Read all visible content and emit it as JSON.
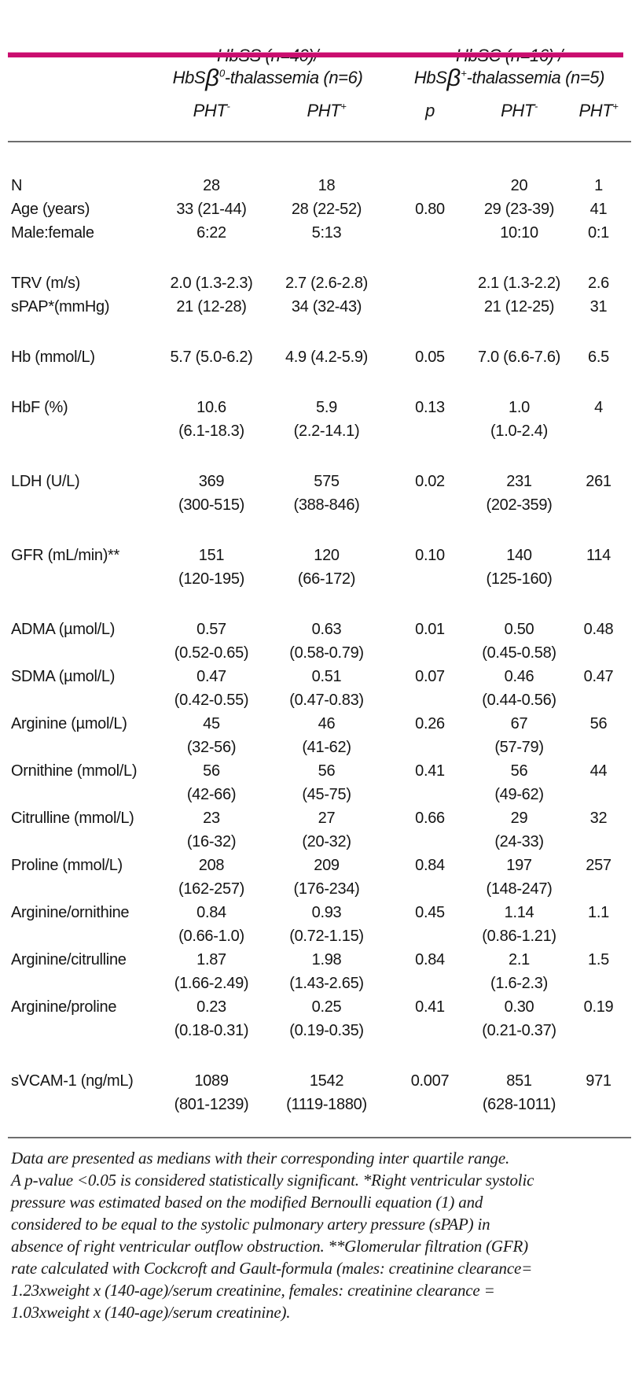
{
  "colors": {
    "accent_bar": "#ca0d6f",
    "rule": "#6e6e6e",
    "text": "#141414"
  },
  "table": {
    "group_headers": [
      {
        "line1": "HbSS (n=40)/",
        "line2_base": "HbS",
        "line2_beta": "β",
        "line2_sup": "0",
        "line2_rest": "-thalassemia (n=6)"
      },
      {
        "line1": "HbSC (n=16) /",
        "line2_base": "HbS",
        "line2_beta": "β",
        "line2_sup": "+",
        "line2_rest": "-thalassemia (n=5)"
      }
    ],
    "subheaders": [
      {
        "base": "PHT",
        "sup": "-"
      },
      {
        "base": "PHT",
        "sup": "+"
      },
      {
        "base": "p",
        "sup": ""
      },
      {
        "base": "PHT",
        "sup": "-"
      },
      {
        "base": "PHT",
        "sup": "+"
      }
    ],
    "rows": [
      {
        "label": "N",
        "v1": "28",
        "r1": "",
        "v2": "18",
        "r2": "",
        "p": "",
        "v3": "20",
        "r3": "",
        "v4": "1",
        "gap_before": false
      },
      {
        "label": "Age (years)",
        "v1": "33 (21-44)",
        "r1": "",
        "v2": "28 (22-52)",
        "r2": "",
        "p": "0.80",
        "v3": "29 (23-39)",
        "r3": "",
        "v4": "41",
        "gap_before": false
      },
      {
        "label": "Male:female",
        "v1": "6:22",
        "r1": "",
        "v2": "5:13",
        "r2": "",
        "p": "",
        "v3": "10:10",
        "r3": "",
        "v4": "0:1",
        "gap_before": false
      },
      {
        "label": "TRV (m/s)",
        "v1": "2.0 (1.3-2.3)",
        "r1": "",
        "v2": "2.7 (2.6-2.8)",
        "r2": "",
        "p": "",
        "v3": "2.1 (1.3-2.2)",
        "r3": "",
        "v4": "2.6",
        "gap_before": true
      },
      {
        "label": "sPAP*(mmHg)",
        "v1": "21 (12-28)",
        "r1": "",
        "v2": "34 (32-43)",
        "r2": "",
        "p": "",
        "v3": "21 (12-25)",
        "r3": "",
        "v4": "31",
        "gap_before": false
      },
      {
        "label": "Hb (mmol/L)",
        "v1": "5.7 (5.0-6.2)",
        "r1": "",
        "v2": "4.9 (4.2-5.9)",
        "r2": "",
        "p": "0.05",
        "v3": "7.0 (6.6-7.6)",
        "r3": "",
        "v4": "6.5",
        "gap_before": true
      },
      {
        "label": "HbF (%)",
        "v1": "10.6",
        "r1": "(6.1-18.3)",
        "v2": "5.9",
        "r2": "(2.2-14.1)",
        "p": "0.13",
        "v3": "1.0",
        "r3": "(1.0-2.4)",
        "v4": "4",
        "gap_before": true
      },
      {
        "label": "LDH (U/L)",
        "v1": "369",
        "r1": "(300-515)",
        "v2": "575",
        "r2": "(388-846)",
        "p": "0.02",
        "v3": "231",
        "r3": "(202-359)",
        "v4": "261",
        "gap_before": true
      },
      {
        "label": "GFR (mL/min)**",
        "v1": "151",
        "r1": "(120-195)",
        "v2": "120",
        "r2": "(66-172)",
        "p": "0.10",
        "v3": "140",
        "r3": "(125-160)",
        "v4": "114",
        "gap_before": true
      },
      {
        "label": "ADMA (µmol/L)",
        "v1": "0.57",
        "r1": "(0.52-0.65)",
        "v2": "0.63",
        "r2": "(0.58-0.79)",
        "p": "0.01",
        "v3": "0.50",
        "r3": "(0.45-0.58)",
        "v4": "0.48",
        "gap_before": true
      },
      {
        "label": "SDMA (µmol/L)",
        "v1": "0.47",
        "r1": "(0.42-0.55)",
        "v2": "0.51",
        "r2": "(0.47-0.83)",
        "p": "0.07",
        "v3": "0.46",
        "r3": "(0.44-0.56)",
        "v4": "0.47",
        "gap_before": false
      },
      {
        "label": "Arginine (µmol/L)",
        "v1": "45",
        "r1": "(32-56)",
        "v2": "46",
        "r2": "(41-62)",
        "p": "0.26",
        "v3": "67",
        "r3": "(57-79)",
        "v4": "56",
        "gap_before": false
      },
      {
        "label": "Ornithine (mmol/L)",
        "v1": "56",
        "r1": "(42-66)",
        "v2": "56",
        "r2": "(45-75)",
        "p": "0.41",
        "v3": "56",
        "r3": "(49-62)",
        "v4": "44",
        "gap_before": false
      },
      {
        "label": "Citrulline (mmol/L)",
        "v1": "23",
        "r1": "(16-32)",
        "v2": "27",
        "r2": "(20-32)",
        "p": "0.66",
        "v3": "29",
        "r3": "(24-33)",
        "v4": "32",
        "gap_before": false
      },
      {
        "label": "Proline (mmol/L)",
        "v1": "208",
        "r1": "(162-257)",
        "v2": "209",
        "r2": "(176-234)",
        "p": "0.84",
        "v3": "197",
        "r3": "(148-247)",
        "v4": "257",
        "gap_before": false
      },
      {
        "label": "Arginine/ornithine",
        "v1": "0.84",
        "r1": "(0.66-1.0)",
        "v2": "0.93",
        "r2": "(0.72-1.15)",
        "p": "0.45",
        "v3": "1.14",
        "r3": "(0.86-1.21)",
        "v4": "1.1",
        "gap_before": false
      },
      {
        "label": "Arginine/citrulline",
        "v1": "1.87",
        "r1": "(1.66-2.49)",
        "v2": "1.98",
        "r2": "(1.43-2.65)",
        "p": "0.84",
        "v3": "2.1",
        "r3": "(1.6-2.3)",
        "v4": "1.5",
        "gap_before": false
      },
      {
        "label": "Arginine/proline",
        "v1": "0.23",
        "r1": "(0.18-0.31)",
        "v2": "0.25",
        "r2": "(0.19-0.35)",
        "p": "0.41",
        "v3": "0.30",
        "r3": "(0.21-0.37)",
        "v4": "0.19",
        "gap_before": false
      },
      {
        "label": "sVCAM-1 (ng/mL)",
        "v1": "1089",
        "r1": "(801-1239)",
        "v2": "1542",
        "r2": "(1119-1880)",
        "p": "0.007",
        "v3": "851",
        "r3": "(628-1011)",
        "v4": "971",
        "gap_before": true
      }
    ]
  },
  "footnote": {
    "lines": [
      "Data are presented as medians with their corresponding inter quartile range.",
      "A p-value <0.05 is considered statistically significant. *Right ventricular systolic",
      "pressure was estimated based on the modified Bernoulli equation (1) and",
      "considered to be equal to the systolic pulmonary artery pressure (sPAP) in",
      "absence of right ventricular outflow obstruction. **Glomerular filtration (GFR)",
      "rate calculated with Cockcroft and Gault-formula (males: creatinine clearance=",
      "1.23xweight x (140-age)/serum creatinine, females: creatinine clearance =",
      "1.03xweight x (140-age)/serum creatinine)."
    ]
  }
}
